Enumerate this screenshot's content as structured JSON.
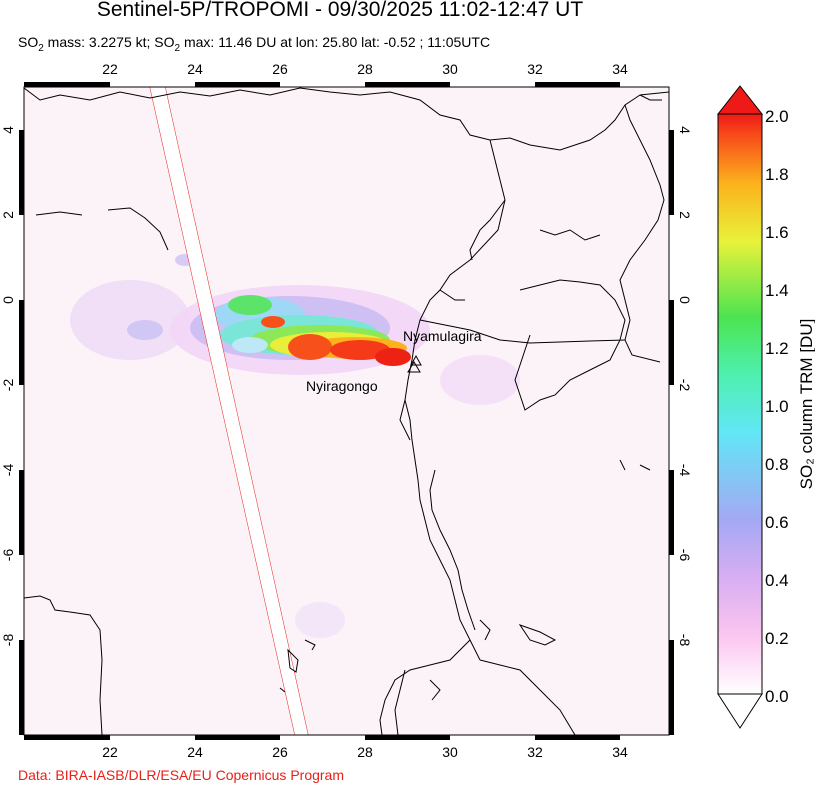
{
  "map": {
    "title": "Sentinel-5P/TROPOMI - 09/30/2025 11:02-12:47 UT",
    "subtitle": {
      "part1": "SO",
      "sub1": "2",
      "part2": " mass: 3.2275 kt; SO",
      "sub2": "2",
      "part3": " max: 11.46 DU at lon: 25.80 lat: -0.52 ; 11:05UTC"
    },
    "credit": "Data: BIRA-IASB/DLR/ESA/EU Copernicus Program",
    "lon_ticks": [
      "22",
      "24",
      "26",
      "28",
      "30",
      "32",
      "34"
    ],
    "lat_ticks_left": [
      "4",
      "2",
      "0",
      "-2",
      "-4",
      "-6",
      "-8"
    ],
    "lat_ticks_right": [
      "4",
      "2",
      "0",
      "-2",
      "-4",
      "-6",
      "-8"
    ],
    "volcanoes": [
      {
        "name": "Nyamulagira"
      },
      {
        "name": "Nyiragongo"
      }
    ]
  },
  "colorbar": {
    "label": "SO₂ column TRM [DU]",
    "ticks": [
      "2.0",
      "1.8",
      "1.6",
      "1.4",
      "1.2",
      "1.0",
      "0.8",
      "0.6",
      "0.4",
      "0.2",
      "0.0"
    ],
    "min": 0.0,
    "max": 2.0,
    "colors": [
      "#ffffff",
      "#fbc6f0",
      "#c8a8f0",
      "#9fb4f6",
      "#62e6f6",
      "#41f08c",
      "#5ce34a",
      "#e8f23a",
      "#fbb21c",
      "#f8501a",
      "#ee1a18"
    ]
  }
}
